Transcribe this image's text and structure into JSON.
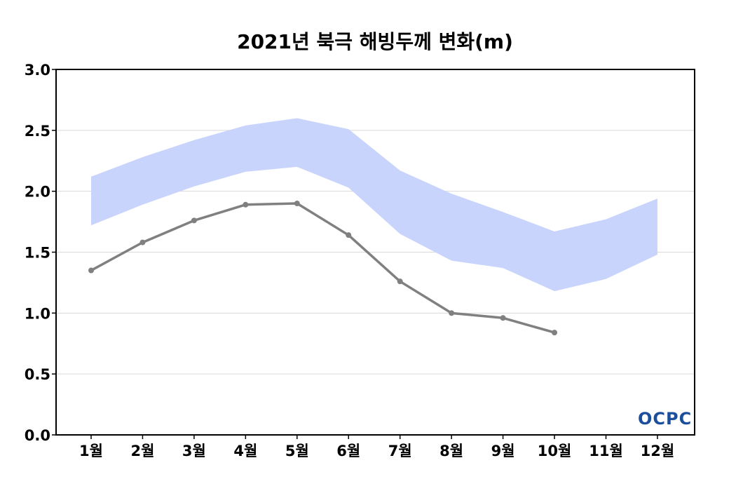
{
  "chart_data": {
    "type": "line",
    "title": "2021년 북극 해빙두께 변화(m)",
    "xlabel": "",
    "ylabel": "",
    "categories": [
      "1월",
      "2월",
      "3월",
      "4월",
      "5월",
      "6월",
      "7월",
      "8월",
      "9월",
      "10월",
      "11월",
      "12월"
    ],
    "ylim": [
      0,
      3.0
    ],
    "yticks": [
      "0.0",
      "0.5",
      "1.0",
      "1.5",
      "2.0",
      "2.5",
      "3.0"
    ],
    "grid": true,
    "series": [
      {
        "type": "line",
        "values": [
          1.35,
          1.58,
          1.76,
          1.89,
          1.9,
          1.64,
          1.26,
          1.0,
          0.96,
          0.84,
          null,
          null
        ],
        "color": "#808080"
      }
    ],
    "band": {
      "upper": [
        2.12,
        2.28,
        2.42,
        2.54,
        2.6,
        2.51,
        2.17,
        1.98,
        1.83,
        1.67,
        1.77,
        1.94
      ],
      "lower": [
        1.72,
        1.89,
        2.04,
        2.16,
        2.2,
        2.03,
        1.65,
        1.43,
        1.37,
        1.18,
        1.28,
        1.48
      ],
      "color": "#c8d4fc"
    }
  },
  "logo": {
    "text": "OCPC",
    "color": "#1b4f9c"
  }
}
